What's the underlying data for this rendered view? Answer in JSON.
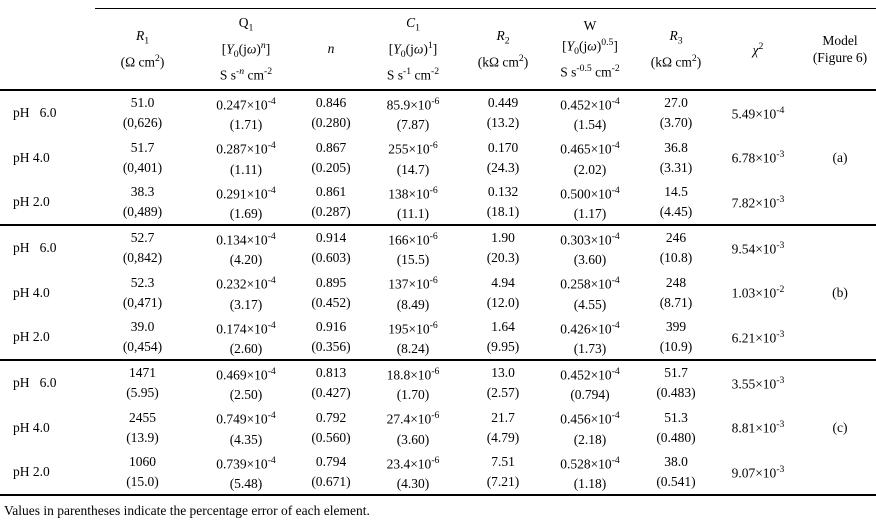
{
  "footnote": "Values in parentheses indicate the percentage error of each element.",
  "table": {
    "columns": [
      {
        "id": "ph",
        "lines": [
          ""
        ]
      },
      {
        "id": "r1",
        "lines": [
          "*R*_{1}",
          "(Ω cm^{2})"
        ]
      },
      {
        "id": "q1",
        "lines": [
          "Q_{1}",
          "[*Y*_{0}(j*ω*)^{*n*}]",
          "S s^{-*n*} cm^{-2}"
        ]
      },
      {
        "id": "n",
        "lines": [
          "*n*"
        ]
      },
      {
        "id": "c1",
        "lines": [
          "*C*_{1}",
          "[*Y*_{0}(j*ω*)^{1}]",
          "S s^{-1} cm^{-2}"
        ]
      },
      {
        "id": "r2",
        "lines": [
          "*R*_{2}",
          "(kΩ cm^{2})"
        ]
      },
      {
        "id": "w",
        "lines": [
          "W",
          "[*Y*_{0}(j*ω*)^{0.5}]",
          "S s^{-0.5} cm^{-2}"
        ]
      },
      {
        "id": "r3",
        "lines": [
          "*R*_{3}",
          "(kΩ cm^{2})"
        ]
      },
      {
        "id": "chi2",
        "lines": [
          "*χ*^{2}"
        ]
      },
      {
        "id": "model",
        "lines": [
          "Model",
          "(Figure 6)"
        ]
      }
    ],
    "groups": [
      {
        "model": "(a)",
        "rows": [
          {
            "label": "pH   6.0",
            "values": [
              "51.0",
              "0.247×10^{-4}",
              "0.846",
              "85.9×10^{-6}",
              "0.449",
              "0.452×10^{-4}",
              "27.0"
            ],
            "errors": [
              "(0,626)",
              "(1.71)",
              "(0.280)",
              "(7.87)",
              "(13.2)",
              "(1.54)",
              "(3.70)"
            ],
            "chi2": "5.49×10^{-4}"
          },
          {
            "label": "pH 4.0",
            "values": [
              "51.7",
              "0.287×10^{-4}",
              "0.867",
              "255×10^{-6}",
              "0.170",
              "0.465×10^{-4}",
              "36.8"
            ],
            "errors": [
              "(0,401)",
              "(1.11)",
              "(0.205)",
              "(14.7)",
              "(24.3)",
              "(2.02)",
              "(3.31)"
            ],
            "chi2": "6.78×10^{-3}"
          },
          {
            "label": "pH 2.0",
            "values": [
              "38.3",
              "0.291×10^{-4}",
              "0.861",
              "138×10^{-6}",
              "0.132",
              "0.500×10^{-4}",
              "14.5"
            ],
            "errors": [
              "(0,489)",
              "(1.69)",
              "(0.287)",
              "(11.1)",
              "(18.1)",
              "(1.17)",
              "(4.45)"
            ],
            "chi2": "7.82×10^{-3}"
          }
        ]
      },
      {
        "model": "(b)",
        "rows": [
          {
            "label": "pH   6.0",
            "values": [
              "52.7",
              "0.134×10^{-4}",
              "0.914",
              "166×10^{-6}",
              "1.90",
              "0.303×10^{-4}",
              "246"
            ],
            "errors": [
              "(0,842)",
              "(4.20)",
              "(0.603)",
              "(15.5)",
              "(20.3)",
              "(3.60)",
              "(10.8)"
            ],
            "chi2": "9.54×10^{-3}"
          },
          {
            "label": "pH 4.0",
            "values": [
              "52.3",
              "0.232×10^{-4}",
              "0.895",
              "137×10^{-6}",
              "4.94",
              "0.258×10^{-4}",
              "248"
            ],
            "errors": [
              "(0,471)",
              "(3.17)",
              "(0.452)",
              "(8.49)",
              "(12.0)",
              "(4.55)",
              "(8.71)"
            ],
            "chi2": "1.03×10^{-2}"
          },
          {
            "label": "pH 2.0",
            "values": [
              "39.0",
              "0.174×10^{-4}",
              "0.916",
              "195×10^{-6}",
              "1.64",
              "0.426×10^{-4}",
              "399"
            ],
            "errors": [
              "(0,454)",
              "(2.60)",
              "(0.356)",
              "(8.24)",
              "(9.95)",
              "(1.73)",
              "(10.9)"
            ],
            "chi2": "6.21×10^{-3}"
          }
        ]
      },
      {
        "model": "(c)",
        "rows": [
          {
            "label": "pH   6.0",
            "values": [
              "1471",
              "0.469×10^{-4}",
              "0.813",
              "18.8×10^{-6}",
              "13.0",
              "0.452×10^{-4}",
              "51.7"
            ],
            "errors": [
              "(5.95)",
              "(2.50)",
              "(0.427)",
              "(1.70)",
              "(2.57)",
              "(0.794)",
              "(0.483)"
            ],
            "chi2": "3.55×10^{-3}"
          },
          {
            "label": "pH 4.0",
            "values": [
              "2455",
              "0.749×10^{-4}",
              "0.792",
              "27.4×10^{-6}",
              "21.7",
              "0.456×10^{-4}",
              "51.3"
            ],
            "errors": [
              "(13.9)",
              "(4.35)",
              "(0.560)",
              "(3.60)",
              "(4.79)",
              "(2.18)",
              "(0.480)"
            ],
            "chi2": "8.81×10^{-3}"
          },
          {
            "label": "pH 2.0",
            "values": [
              "1060",
              "0.739×10^{-4}",
              "0.794",
              "23.4×10^{-6}",
              "7.51",
              "0.528×10^{-4}",
              "38.0"
            ],
            "errors": [
              "(15.0)",
              "(5.48)",
              "(0.671)",
              "(4.30)",
              "(7.21)",
              "(1.18)",
              "(0.541)"
            ],
            "chi2": "9.07×10^{-3}"
          }
        ]
      }
    ]
  }
}
